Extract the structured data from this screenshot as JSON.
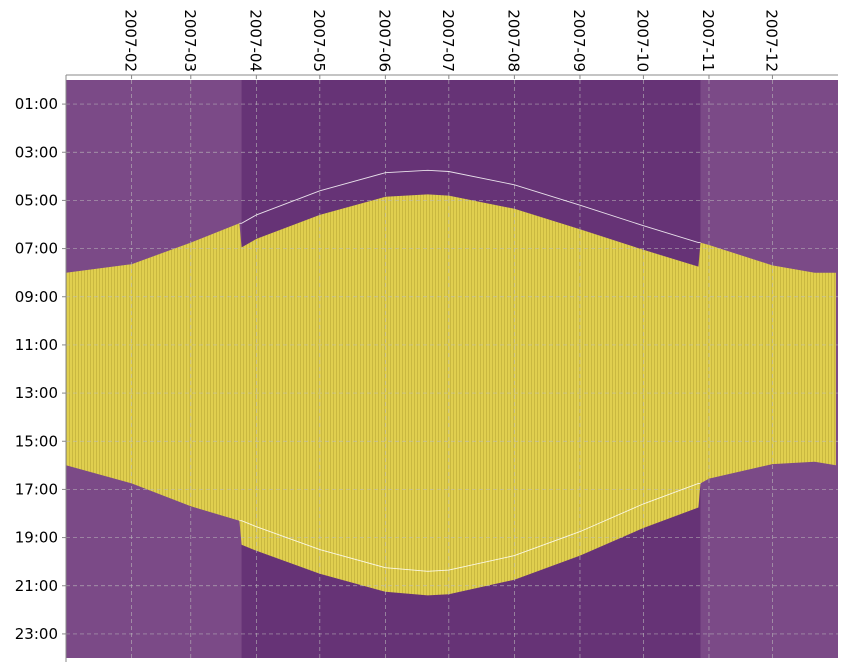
{
  "chart_data": {
    "type": "area",
    "title": "",
    "xlabel": "",
    "ylabel": "",
    "x_ticks": [
      "2007-02",
      "2007-03",
      "2007-04",
      "2007-05",
      "2007-06",
      "2007-07",
      "2007-08",
      "2007-09",
      "2007-10",
      "2007-11",
      "2007-12"
    ],
    "y_ticks": [
      "01:00",
      "03:00",
      "05:00",
      "07:00",
      "09:00",
      "11:00",
      "13:00",
      "15:00",
      "17:00",
      "19:00",
      "21:00",
      "23:00"
    ],
    "xlim": [
      "2007-01-01",
      "2007-12-31"
    ],
    "ylim_hours": [
      0,
      24
    ],
    "y_inverted": true,
    "grid": true,
    "dst_period": {
      "start": "2007-03-25",
      "end": "2007-10-28"
    },
    "series": [
      {
        "x": [
          "2007-01-01",
          "2007-02-01",
          "2007-03-01",
          "2007-03-24",
          "2007-03-25",
          "2007-04-01",
          "2007-05-01",
          "2007-06-01",
          "2007-06-21",
          "2007-07-01",
          "2007-08-01",
          "2007-09-01",
          "2007-10-01",
          "2007-10-27",
          "2007-10-28",
          "2007-11-01",
          "2007-12-01",
          "2007-12-21",
          "2007-12-31"
        ],
        "sunrise_hours": [
          8.0,
          7.65,
          6.75,
          5.95,
          6.95,
          6.6,
          5.6,
          4.85,
          4.75,
          4.8,
          5.35,
          6.2,
          7.05,
          7.75,
          6.75,
          6.85,
          7.7,
          8.0,
          8.0
        ],
        "sunset_hours": [
          16.0,
          16.75,
          17.7,
          18.3,
          19.3,
          19.55,
          20.5,
          21.25,
          21.4,
          21.35,
          20.75,
          19.75,
          18.6,
          17.75,
          16.75,
          16.55,
          15.95,
          15.85,
          16.0
        ]
      }
    ],
    "colors": {
      "night": "#7b4a87",
      "night_dst": "#663376",
      "daylight": "#e0cf4f",
      "daylight_stripe": "#c9b840",
      "grid": "#bdbdbd",
      "reference_line": "#ffffff"
    }
  }
}
